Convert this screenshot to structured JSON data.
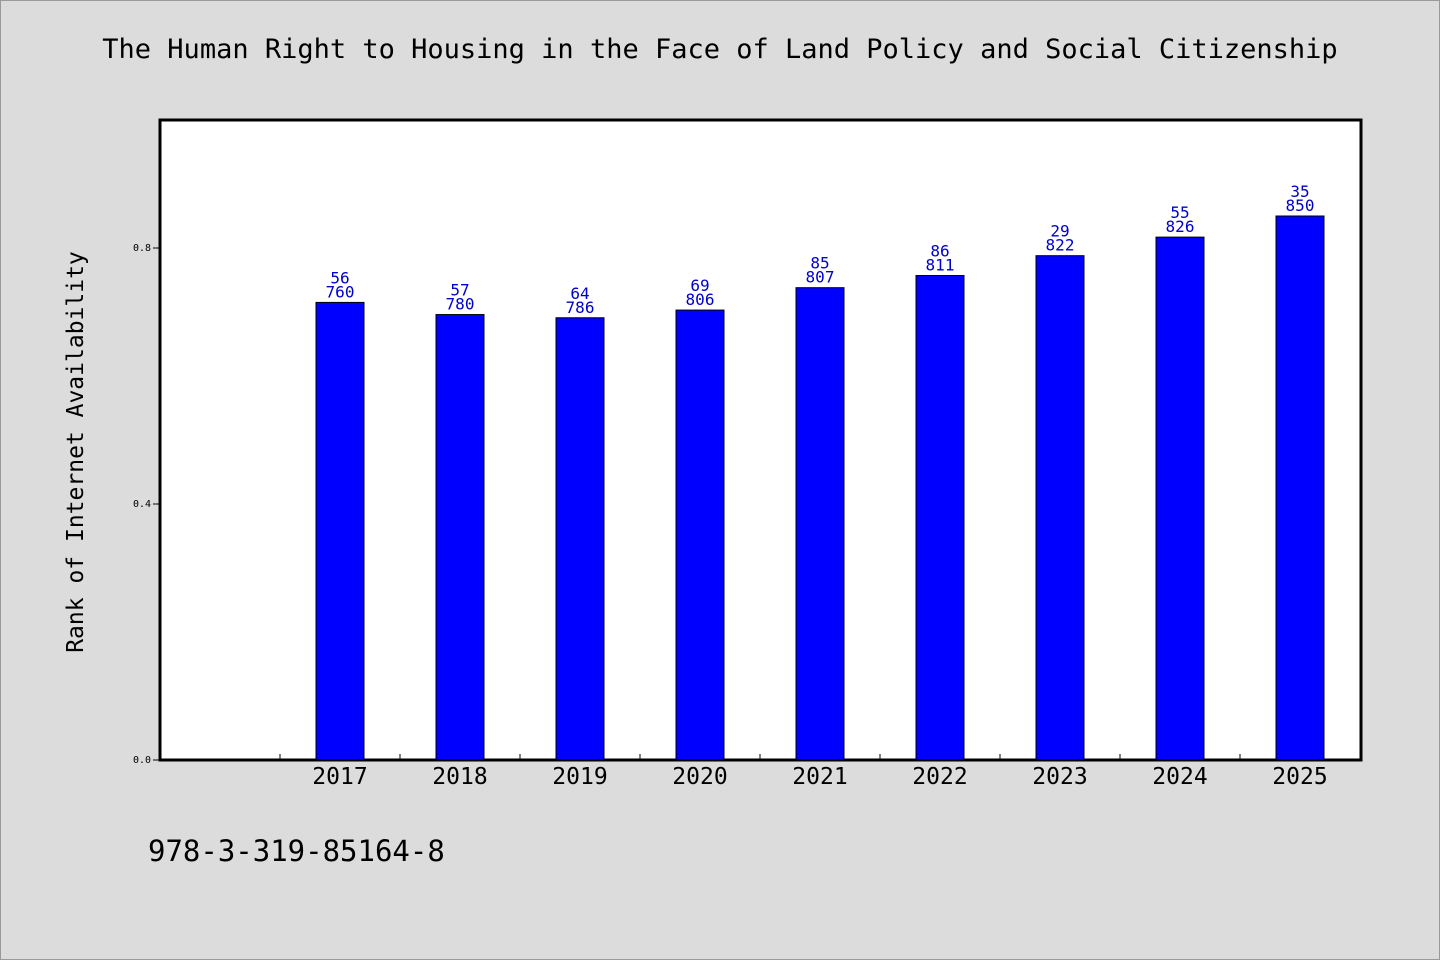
{
  "title": "The Human Right to Housing in the Face of Land Policy and Social Citizenship",
  "ylabel": "Rank of Internet Availability",
  "footer_code": "978-3-319-85164-8",
  "colors": {
    "bar": "#0000ff",
    "label": "#0000cc",
    "background": "#dcdcdc",
    "plot": "#ffffff"
  },
  "chart_data": {
    "type": "bar",
    "categories": [
      "2017",
      "2018",
      "2019",
      "2020",
      "2021",
      "2022",
      "2023",
      "2024",
      "2025"
    ],
    "values": [
      0.715,
      0.696,
      0.691,
      0.703,
      0.738,
      0.757,
      0.788,
      0.817,
      0.85
    ],
    "label_top": [
      "56",
      "57",
      "64",
      "69",
      "85",
      "86",
      "29",
      "55",
      "35"
    ],
    "label_bottom": [
      "760",
      "780",
      "786",
      "806",
      "807",
      "811",
      "822",
      "826",
      "850"
    ],
    "yticks": [
      {
        "value": 0.0,
        "label": "0.0"
      },
      {
        "value": 0.4,
        "label": "0.4"
      },
      {
        "value": 0.8,
        "label": "0.8"
      }
    ],
    "ylim": [
      0,
      1.0
    ],
    "grid": false,
    "legend": "none"
  }
}
